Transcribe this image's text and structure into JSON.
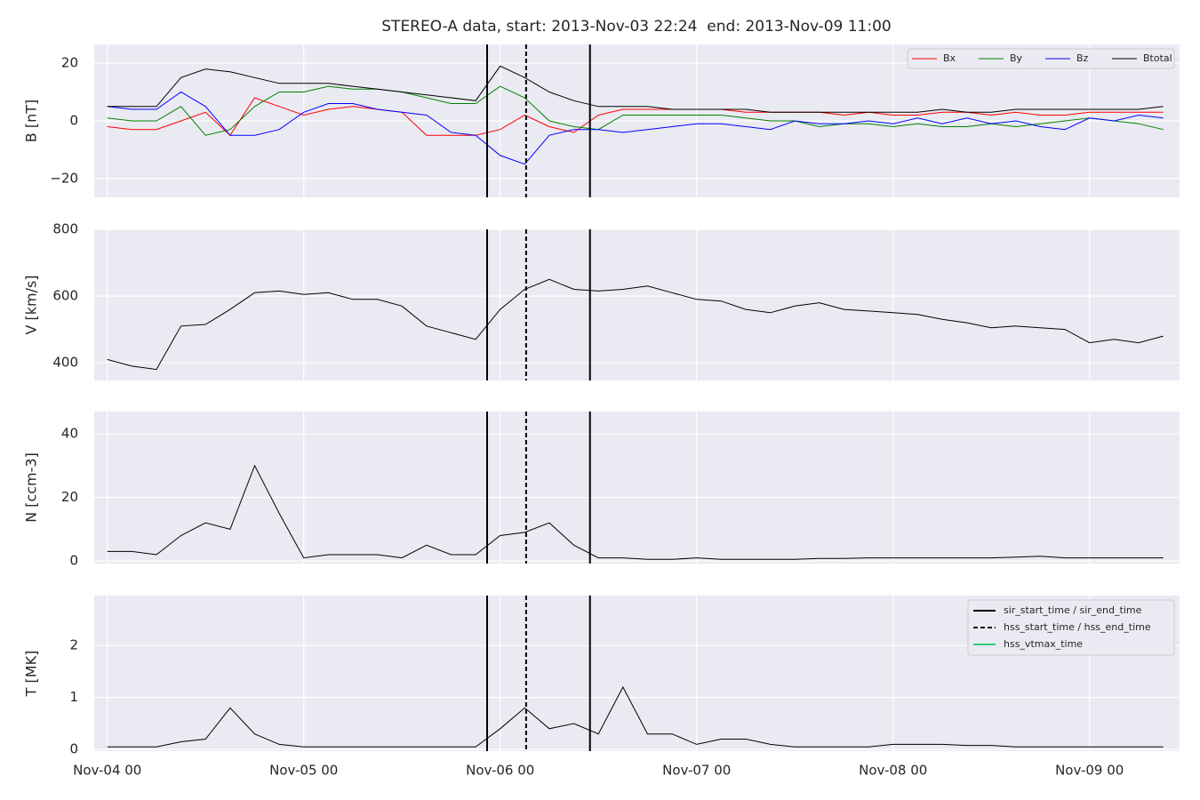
{
  "title": "STEREO-A data, start: 2013-Nov-03 22:24  end: 2013-Nov-09 11:00",
  "markers": {
    "legend": "upper right",
    "entries": [
      {
        "label": "sir_start_time / sir_end_time",
        "color": "#000000",
        "style": "solid",
        "times": [
          "2013-11-05T22:24",
          "2013-11-06T10:58"
        ]
      },
      {
        "label": "hss_start_time / hss_end_time",
        "color": "#000000",
        "style": "dashed",
        "times": [
          "2013-11-06T03:10"
        ]
      },
      {
        "label": "hss_vtmax_time",
        "color": "#2ecc71",
        "style": "solid",
        "times": []
      }
    ]
  },
  "chart_data": [
    {
      "type": "line",
      "ylabel": "B [nT]",
      "legend": "upper right",
      "grid": true,
      "xlim": [
        "2013-11-03T22:24",
        "2013-11-09T11:00"
      ],
      "xticks": [
        {
          "value": "2013-11-04T00:00",
          "label": "Nov-04 00"
        },
        {
          "value": "2013-11-05T00:00",
          "label": "Nov-05 00"
        },
        {
          "value": "2013-11-06T00:00",
          "label": "Nov-06 00"
        },
        {
          "value": "2013-11-07T00:00",
          "label": "Nov-07 00"
        },
        {
          "value": "2013-11-08T00:00",
          "label": "Nov-08 00"
        },
        {
          "value": "2013-11-09T00:00",
          "label": "Nov-09 00"
        }
      ],
      "ylim": [
        -26.5,
        26.5
      ],
      "yticks": [
        {
          "value": -20,
          "label": "−20"
        },
        0,
        20
      ],
      "x": [
        "2013-11-04T00:00",
        "2013-11-04T03:00",
        "2013-11-04T06:00",
        "2013-11-04T09:00",
        "2013-11-04T12:00",
        "2013-11-04T15:00",
        "2013-11-04T18:00",
        "2013-11-04T21:00",
        "2013-11-05T00:00",
        "2013-11-05T03:00",
        "2013-11-05T06:00",
        "2013-11-05T09:00",
        "2013-11-05T12:00",
        "2013-11-05T15:00",
        "2013-11-05T18:00",
        "2013-11-05T21:00",
        "2013-11-06T00:00",
        "2013-11-06T03:00",
        "2013-11-06T06:00",
        "2013-11-06T09:00",
        "2013-11-06T12:00",
        "2013-11-06T15:00",
        "2013-11-06T18:00",
        "2013-11-06T21:00",
        "2013-11-07T00:00",
        "2013-11-07T03:00",
        "2013-11-07T06:00",
        "2013-11-07T09:00",
        "2013-11-07T12:00",
        "2013-11-07T15:00",
        "2013-11-07T18:00",
        "2013-11-07T21:00",
        "2013-11-08T00:00",
        "2013-11-08T03:00",
        "2013-11-08T06:00",
        "2013-11-08T09:00",
        "2013-11-08T12:00",
        "2013-11-08T15:00",
        "2013-11-08T18:00",
        "2013-11-08T21:00",
        "2013-11-09T00:00",
        "2013-11-09T03:00",
        "2013-11-09T06:00",
        "2013-11-09T09:00"
      ],
      "series": [
        {
          "name": "Bx",
          "color": "#ff0000",
          "values": [
            -2,
            -3,
            -3,
            0,
            3,
            -5,
            8,
            5,
            2,
            4,
            5,
            4,
            3,
            -5,
            -5,
            -5,
            -3,
            2,
            -2,
            -4,
            2,
            4,
            4,
            4,
            4,
            4,
            3,
            3,
            3,
            3,
            2,
            3,
            2,
            2,
            3,
            3,
            2,
            3,
            2,
            2,
            3,
            3,
            3,
            3
          ]
        },
        {
          "name": "By",
          "color": "#008000",
          "values": [
            1,
            0,
            0,
            5,
            -5,
            -3,
            5,
            10,
            10,
            12,
            11,
            11,
            10,
            8,
            6,
            6,
            12,
            8,
            0,
            -2,
            -3,
            2,
            2,
            2,
            2,
            2,
            1,
            0,
            0,
            -2,
            -1,
            -1,
            -2,
            -1,
            -2,
            -2,
            -1,
            -2,
            -1,
            0,
            1,
            0,
            -1,
            -3
          ]
        },
        {
          "name": "Bz",
          "color": "#0000ff",
          "values": [
            5,
            4,
            4,
            10,
            5,
            -5,
            -5,
            -3,
            3,
            6,
            6,
            4,
            3,
            2,
            -4,
            -5,
            -12,
            -15,
            -5,
            -3,
            -3,
            -4,
            -3,
            -2,
            -1,
            -1,
            -2,
            -3,
            0,
            -1,
            -1,
            0,
            -1,
            1,
            -1,
            1,
            -1,
            0,
            -2,
            -3,
            1,
            0,
            2,
            1
          ]
        },
        {
          "name": "Btotal",
          "color": "#000000",
          "values": [
            5,
            5,
            5,
            15,
            18,
            17,
            15,
            13,
            13,
            13,
            12,
            11,
            10,
            9,
            8,
            7,
            19,
            15,
            10,
            7,
            5,
            5,
            5,
            4,
            4,
            4,
            4,
            3,
            3,
            3,
            3,
            3,
            3,
            3,
            4,
            3,
            3,
            4,
            4,
            4,
            4,
            4,
            4,
            5
          ]
        }
      ]
    },
    {
      "type": "line",
      "ylabel": "V [km/s]",
      "grid": true,
      "xlim": [
        "2013-11-03T22:24",
        "2013-11-09T11:00"
      ],
      "xticks": [
        {
          "value": "2013-11-04T00:00",
          "label": "Nov-04 00"
        },
        {
          "value": "2013-11-05T00:00",
          "label": "Nov-05 00"
        },
        {
          "value": "2013-11-06T00:00",
          "label": "Nov-06 00"
        },
        {
          "value": "2013-11-07T00:00",
          "label": "Nov-07 00"
        },
        {
          "value": "2013-11-08T00:00",
          "label": "Nov-08 00"
        },
        {
          "value": "2013-11-09T00:00",
          "label": "Nov-09 00"
        }
      ],
      "ylim": [
        347,
        800
      ],
      "yticks": [
        400,
        600,
        800
      ],
      "x": [
        "2013-11-04T00:00",
        "2013-11-04T03:00",
        "2013-11-04T06:00",
        "2013-11-04T09:00",
        "2013-11-04T12:00",
        "2013-11-04T15:00",
        "2013-11-04T18:00",
        "2013-11-04T21:00",
        "2013-11-05T00:00",
        "2013-11-05T03:00",
        "2013-11-05T06:00",
        "2013-11-05T09:00",
        "2013-11-05T12:00",
        "2013-11-05T15:00",
        "2013-11-05T18:00",
        "2013-11-05T21:00",
        "2013-11-06T00:00",
        "2013-11-06T03:00",
        "2013-11-06T06:00",
        "2013-11-06T09:00",
        "2013-11-06T12:00",
        "2013-11-06T15:00",
        "2013-11-06T18:00",
        "2013-11-06T21:00",
        "2013-11-07T00:00",
        "2013-11-07T03:00",
        "2013-11-07T06:00",
        "2013-11-07T09:00",
        "2013-11-07T12:00",
        "2013-11-07T15:00",
        "2013-11-07T18:00",
        "2013-11-07T21:00",
        "2013-11-08T00:00",
        "2013-11-08T03:00",
        "2013-11-08T06:00",
        "2013-11-08T09:00",
        "2013-11-08T12:00",
        "2013-11-08T15:00",
        "2013-11-08T18:00",
        "2013-11-08T21:00",
        "2013-11-09T00:00",
        "2013-11-09T03:00",
        "2013-11-09T06:00",
        "2013-11-09T09:00"
      ],
      "series": [
        {
          "color": "#000000",
          "values": [
            410,
            390,
            380,
            510,
            515,
            560,
            610,
            615,
            605,
            610,
            590,
            590,
            570,
            510,
            490,
            470,
            560,
            620,
            650,
            620,
            615,
            620,
            630,
            610,
            590,
            585,
            560,
            550,
            570,
            580,
            560,
            555,
            550,
            545,
            530,
            520,
            505,
            510,
            505,
            500,
            460,
            470,
            460,
            480
          ]
        }
      ]
    },
    {
      "type": "line",
      "ylabel": "N [ccm-3]",
      "grid": true,
      "xlim": [
        "2013-11-03T22:24",
        "2013-11-09T11:00"
      ],
      "xticks": [
        {
          "value": "2013-11-04T00:00",
          "label": "Nov-04 00"
        },
        {
          "value": "2013-11-05T00:00",
          "label": "Nov-05 00"
        },
        {
          "value": "2013-11-06T00:00",
          "label": "Nov-06 00"
        },
        {
          "value": "2013-11-07T00:00",
          "label": "Nov-07 00"
        },
        {
          "value": "2013-11-08T00:00",
          "label": "Nov-08 00"
        },
        {
          "value": "2013-11-09T00:00",
          "label": "Nov-09 00"
        }
      ],
      "ylim": [
        -0.8,
        47
      ],
      "yticks": [
        0,
        20,
        40
      ],
      "x": [
        "2013-11-04T00:00",
        "2013-11-04T03:00",
        "2013-11-04T06:00",
        "2013-11-04T09:00",
        "2013-11-04T12:00",
        "2013-11-04T15:00",
        "2013-11-04T18:00",
        "2013-11-04T21:00",
        "2013-11-05T00:00",
        "2013-11-05T03:00",
        "2013-11-05T06:00",
        "2013-11-05T09:00",
        "2013-11-05T12:00",
        "2013-11-05T15:00",
        "2013-11-05T18:00",
        "2013-11-05T21:00",
        "2013-11-06T00:00",
        "2013-11-06T03:00",
        "2013-11-06T06:00",
        "2013-11-06T09:00",
        "2013-11-06T12:00",
        "2013-11-06T15:00",
        "2013-11-06T18:00",
        "2013-11-06T21:00",
        "2013-11-07T00:00",
        "2013-11-07T03:00",
        "2013-11-07T06:00",
        "2013-11-07T09:00",
        "2013-11-07T12:00",
        "2013-11-07T15:00",
        "2013-11-07T18:00",
        "2013-11-07T21:00",
        "2013-11-08T00:00",
        "2013-11-08T03:00",
        "2013-11-08T06:00",
        "2013-11-08T09:00",
        "2013-11-08T12:00",
        "2013-11-08T15:00",
        "2013-11-08T18:00",
        "2013-11-08T21:00",
        "2013-11-09T00:00",
        "2013-11-09T03:00",
        "2013-11-09T06:00",
        "2013-11-09T09:00"
      ],
      "series": [
        {
          "color": "#000000",
          "values": [
            3,
            3,
            2,
            8,
            12,
            10,
            30,
            15,
            1,
            2,
            2,
            2,
            1,
            5,
            2,
            2,
            8,
            9,
            12,
            5,
            1,
            1,
            0.5,
            0.5,
            1,
            0.5,
            0.5,
            0.5,
            0.5,
            0.8,
            0.8,
            1,
            1,
            1,
            1,
            1,
            1,
            1.2,
            1.5,
            1,
            1,
            1,
            1,
            1
          ]
        }
      ]
    },
    {
      "type": "line",
      "ylabel": "T [MK]",
      "grid": true,
      "xlim": [
        "2013-11-03T22:24",
        "2013-11-09T11:00"
      ],
      "xticks": [
        {
          "value": "2013-11-04T00:00",
          "label": "Nov-04 00"
        },
        {
          "value": "2013-11-05T00:00",
          "label": "Nov-05 00"
        },
        {
          "value": "2013-11-06T00:00",
          "label": "Nov-06 00"
        },
        {
          "value": "2013-11-07T00:00",
          "label": "Nov-07 00"
        },
        {
          "value": "2013-11-08T00:00",
          "label": "Nov-08 00"
        },
        {
          "value": "2013-11-09T00:00",
          "label": "Nov-09 00"
        }
      ],
      "ylim": [
        -0.03,
        2.96
      ],
      "yticks": [
        0,
        1,
        2
      ],
      "x": [
        "2013-11-04T00:00",
        "2013-11-04T03:00",
        "2013-11-04T06:00",
        "2013-11-04T09:00",
        "2013-11-04T12:00",
        "2013-11-04T15:00",
        "2013-11-04T18:00",
        "2013-11-04T21:00",
        "2013-11-05T00:00",
        "2013-11-05T03:00",
        "2013-11-05T06:00",
        "2013-11-05T09:00",
        "2013-11-05T12:00",
        "2013-11-05T15:00",
        "2013-11-05T18:00",
        "2013-11-05T21:00",
        "2013-11-06T00:00",
        "2013-11-06T03:00",
        "2013-11-06T06:00",
        "2013-11-06T09:00",
        "2013-11-06T12:00",
        "2013-11-06T15:00",
        "2013-11-06T18:00",
        "2013-11-06T21:00",
        "2013-11-07T00:00",
        "2013-11-07T03:00",
        "2013-11-07T06:00",
        "2013-11-07T09:00",
        "2013-11-07T12:00",
        "2013-11-07T15:00",
        "2013-11-07T18:00",
        "2013-11-07T21:00",
        "2013-11-08T00:00",
        "2013-11-08T03:00",
        "2013-11-08T06:00",
        "2013-11-08T09:00",
        "2013-11-08T12:00",
        "2013-11-08T15:00",
        "2013-11-08T18:00",
        "2013-11-08T21:00",
        "2013-11-09T00:00",
        "2013-11-09T03:00",
        "2013-11-09T06:00",
        "2013-11-09T09:00"
      ],
      "series": [
        {
          "color": "#000000",
          "values": [
            0.05,
            0.05,
            0.05,
            0.15,
            0.2,
            0.8,
            0.3,
            0.1,
            0.05,
            0.05,
            0.05,
            0.05,
            0.05,
            0.05,
            0.05,
            0.05,
            0.4,
            0.8,
            0.4,
            0.5,
            0.3,
            1.2,
            0.3,
            0.3,
            0.1,
            0.2,
            0.2,
            0.1,
            0.05,
            0.05,
            0.05,
            0.05,
            0.1,
            0.1,
            0.1,
            0.08,
            0.08,
            0.05,
            0.05,
            0.05,
            0.05,
            0.05,
            0.05,
            0.05
          ]
        }
      ]
    }
  ]
}
